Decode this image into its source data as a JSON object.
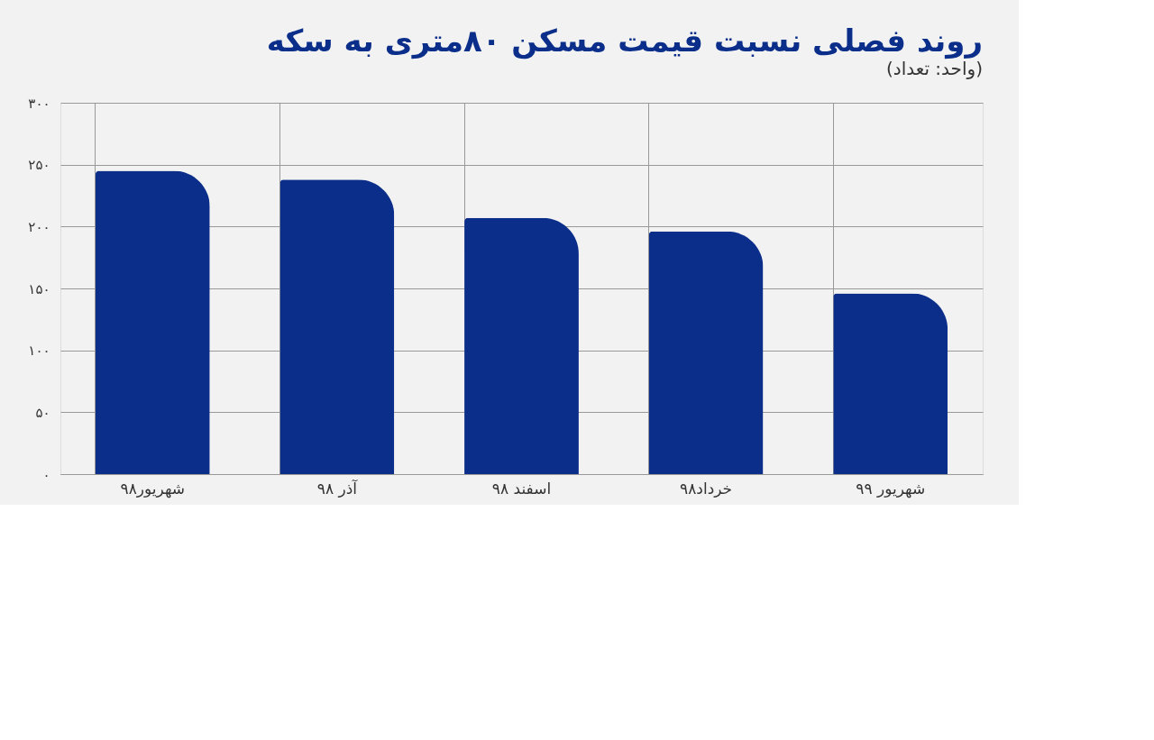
{
  "chart_data": {
    "type": "bar",
    "title": "روند فصلی نسبت  قیمت مسکن ۸۰متری به سکه",
    "subtitle": "(واحد: تعداد)",
    "categories": [
      "شهریور۹۸",
      "آذر ۹۸",
      "اسفند ۹۸",
      "خرداد۹۸",
      "شهریور ۹۹"
    ],
    "values": [
      245,
      238,
      207,
      196,
      146
    ],
    "color": "#0b2e8a",
    "ylim": [
      0,
      300
    ],
    "yticks": [
      {
        "value": 0,
        "label": "۰"
      },
      {
        "value": 50,
        "label": "۵۰"
      },
      {
        "value": 100,
        "label": "۱۰۰"
      },
      {
        "value": 150,
        "label": "۱۵۰"
      },
      {
        "value": 200,
        "label": "۲۰۰"
      },
      {
        "value": 250,
        "label": "۲۵۰"
      },
      {
        "value": 300,
        "label": "۳۰۰"
      }
    ],
    "grid": true
  }
}
